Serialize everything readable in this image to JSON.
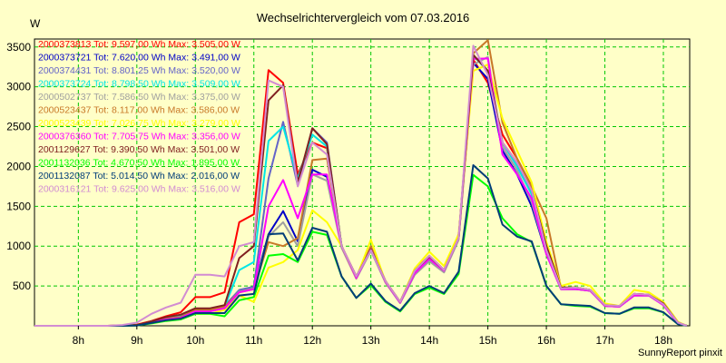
{
  "chart_data": {
    "type": "line",
    "title": "Wechselrichtervergleich vom 07.03.2016",
    "ylabel": "W",
    "ylim": [
      0,
      3600
    ],
    "xlim": [
      7.25,
      18.45
    ],
    "yticks": [
      500,
      1000,
      1500,
      2000,
      2500,
      3000,
      3500
    ],
    "xticks": [
      {
        "value": 8,
        "label": "8h"
      },
      {
        "value": 9,
        "label": "9h"
      },
      {
        "value": 10,
        "label": "10h"
      },
      {
        "value": 11,
        "label": "11h"
      },
      {
        "value": 12,
        "label": "12h"
      },
      {
        "value": 13,
        "label": "13h"
      },
      {
        "value": 14,
        "label": "14h"
      },
      {
        "value": 15,
        "label": "15h"
      },
      {
        "value": 16,
        "label": "16h"
      },
      {
        "value": 17,
        "label": "17h"
      },
      {
        "value": 18,
        "label": "18h"
      }
    ],
    "grid": true,
    "credit": "SunnyReport pinxit",
    "x": [
      7.25,
      8.5,
      8.75,
      9.0,
      9.25,
      9.5,
      9.75,
      10.0,
      10.25,
      10.5,
      10.75,
      11.0,
      11.25,
      11.5,
      11.75,
      12.0,
      12.25,
      12.5,
      12.75,
      13.0,
      13.25,
      13.5,
      13.75,
      14.0,
      14.25,
      14.5,
      14.75,
      15.0,
      15.25,
      15.5,
      15.75,
      16.0,
      16.25,
      16.5,
      16.75,
      17.0,
      17.25,
      17.5,
      17.75,
      18.0,
      18.25,
      18.4
    ],
    "series": [
      {
        "name": "2000373813",
        "tot": "Tot: 9.597,00 Wh",
        "max": "Max: 3.505,00 W",
        "color": "#ff0000",
        "values": [
          0,
          0,
          5,
          15,
          60,
          120,
          170,
          360,
          360,
          420,
          1300,
          1400,
          3210,
          3050,
          1900,
          2300,
          2230,
          1000,
          620,
          950,
          560,
          300,
          700,
          880,
          700,
          1100,
          3340,
          3050,
          2400,
          2100,
          1750,
          1000,
          480,
          480,
          450,
          260,
          250,
          400,
          390,
          280,
          40,
          0
        ]
      },
      {
        "name": "2000373721",
        "tot": "Tot: 7.620,00 Wh",
        "max": "Max: 3.491,00 W",
        "color": "#0000c8",
        "values": [
          0,
          0,
          0,
          5,
          50,
          90,
          110,
          200,
          200,
          240,
          440,
          480,
          1150,
          1440,
          1060,
          1960,
          1870,
          1000,
          600,
          980,
          550,
          290,
          650,
          820,
          680,
          1100,
          3300,
          3100,
          2200,
          1900,
          1500,
          900,
          460,
          460,
          440,
          250,
          240,
          380,
          380,
          260,
          30,
          0
        ]
      },
      {
        "name": "2000374431",
        "tot": "Tot: 8.801,25 Wh",
        "max": "Max: 3.520,00 W",
        "color": "#6464c8",
        "values": [
          0,
          0,
          0,
          5,
          55,
          100,
          120,
          210,
          210,
          250,
          450,
          490,
          1850,
          2560,
          1760,
          2480,
          2300,
          1000,
          600,
          960,
          550,
          290,
          660,
          840,
          690,
          1100,
          3400,
          3200,
          2300,
          2000,
          1650,
          950,
          470,
          470,
          450,
          255,
          245,
          390,
          390,
          270,
          35,
          0
        ]
      },
      {
        "name": "2000373724",
        "tot": "Tot: 8.798,50 Wh",
        "max": "Max: 3.509,00 W",
        "color": "#00e6e6",
        "values": [
          0,
          0,
          0,
          5,
          55,
          100,
          120,
          200,
          200,
          240,
          700,
          800,
          2320,
          2500,
          1850,
          2400,
          2250,
          1000,
          600,
          960,
          550,
          290,
          660,
          840,
          690,
          1100,
          3390,
          3200,
          2300,
          2000,
          1650,
          950,
          470,
          470,
          450,
          255,
          245,
          390,
          390,
          270,
          35,
          0
        ]
      },
      {
        "name": "2000502737",
        "tot": "Tot: 7.586,50 Wh",
        "max": "Max: 3.375,00 W",
        "color": "#a0a0a0",
        "values": [
          0,
          0,
          0,
          5,
          45,
          85,
          105,
          195,
          195,
          235,
          430,
          470,
          1120,
          1300,
          1000,
          1900,
          1820,
          980,
          590,
          940,
          540,
          285,
          640,
          810,
          670,
          1080,
          3280,
          3375,
          2250,
          1950,
          1550,
          900,
          460,
          460,
          440,
          250,
          240,
          380,
          380,
          260,
          30,
          0
        ]
      },
      {
        "name": "2000523437",
        "tot": "Tot: 8.117,00 Wh",
        "max": "Max: 3.586,00 W",
        "color": "#c87828",
        "values": [
          0,
          0,
          0,
          5,
          50,
          90,
          110,
          200,
          200,
          240,
          420,
          460,
          1050,
          1000,
          1100,
          2080,
          2100,
          1000,
          600,
          1000,
          560,
          300,
          700,
          880,
          700,
          1100,
          3420,
          3586,
          2550,
          2100,
          1750,
          1350,
          480,
          480,
          450,
          260,
          250,
          400,
          390,
          280,
          40,
          0
        ]
      },
      {
        "name": "2000523439",
        "tot": "Tot: 7.026,75 Wh",
        "max": "Max: 3.279,00 W",
        "color": "#ffff00",
        "values": [
          0,
          0,
          0,
          5,
          40,
          70,
          90,
          150,
          150,
          200,
          380,
          300,
          730,
          800,
          950,
          1450,
          1300,
          1000,
          600,
          1080,
          550,
          300,
          720,
          930,
          750,
          1150,
          3200,
          3279,
          2600,
          2200,
          1800,
          1050,
          500,
          550,
          500,
          280,
          250,
          450,
          420,
          300,
          50,
          0
        ]
      },
      {
        "name": "2000376360",
        "tot": "Tot: 7.705,75 Wh",
        "max": "Max: 3.356,00 W",
        "color": "#ff00ff",
        "values": [
          0,
          0,
          0,
          5,
          45,
          80,
          100,
          180,
          180,
          220,
          420,
          460,
          1500,
          1830,
          1350,
          1900,
          1900,
          1000,
          600,
          960,
          550,
          290,
          660,
          840,
          690,
          1100,
          3350,
          3356,
          2150,
          1900,
          1600,
          900,
          460,
          460,
          440,
          250,
          240,
          380,
          380,
          260,
          30,
          0
        ]
      },
      {
        "name": "2001129627",
        "tot": "Tot: 9.390,50 Wh",
        "max": "Max: 3.501,00 W",
        "color": "#802020",
        "values": [
          0,
          0,
          5,
          10,
          55,
          110,
          140,
          220,
          220,
          260,
          850,
          1000,
          2830,
          3020,
          1800,
          2480,
          2280,
          1000,
          620,
          960,
          560,
          300,
          690,
          870,
          700,
          1100,
          3400,
          3200,
          2300,
          2050,
          1700,
          1000,
          480,
          480,
          450,
          260,
          250,
          400,
          390,
          280,
          40,
          0
        ]
      },
      {
        "name": "2001132036",
        "tot": "Tot: 4.670,50 Wh",
        "max": "Max: 1.895,00 W",
        "color": "#00ff00",
        "values": [
          0,
          0,
          0,
          5,
          30,
          60,
          80,
          150,
          150,
          120,
          320,
          360,
          880,
          900,
          800,
          1180,
          1140,
          620,
          350,
          510,
          300,
          180,
          400,
          480,
          400,
          650,
          1895,
          1750,
          1350,
          1150,
          1050,
          500,
          270,
          250,
          240,
          160,
          150,
          220,
          220,
          170,
          20,
          0
        ]
      },
      {
        "name": "2001132087",
        "tot": "Tot: 5.014,50 Wh",
        "max": "Max: 2.016,00 W",
        "color": "#003c78",
        "values": [
          0,
          0,
          0,
          5,
          35,
          70,
          90,
          160,
          160,
          160,
          380,
          400,
          1150,
          1160,
          820,
          1230,
          1180,
          620,
          350,
          530,
          310,
          190,
          410,
          500,
          410,
          680,
          2016,
          1850,
          1270,
          1120,
          1060,
          500,
          270,
          260,
          250,
          160,
          150,
          230,
          230,
          170,
          20,
          0
        ]
      },
      {
        "name": "2000316121",
        "tot": "Tot: 9.625,00 Wh",
        "max": "Max: 3.516,00 W",
        "color": "#d28cd2",
        "values": [
          0,
          0,
          10,
          40,
          150,
          230,
          290,
          640,
          640,
          620,
          1000,
          1050,
          3080,
          3000,
          1750,
          2300,
          2150,
          1000,
          620,
          950,
          560,
          300,
          690,
          880,
          700,
          1100,
          3516,
          3150,
          2300,
          2050,
          1700,
          950,
          470,
          480,
          450,
          260,
          250,
          400,
          390,
          270,
          40,
          0
        ]
      }
    ]
  }
}
